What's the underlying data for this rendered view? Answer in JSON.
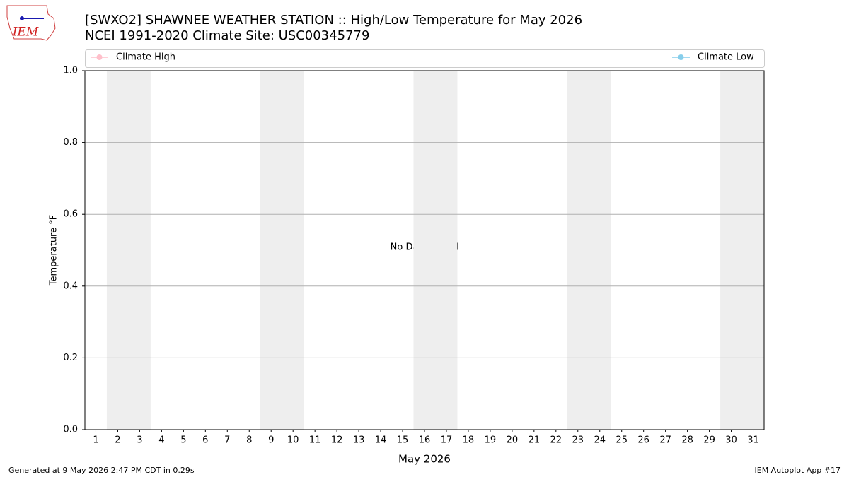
{
  "logo_text": "IEM",
  "chart_data": {
    "type": "line",
    "title": "[SWXO2] SHAWNEE WEATHER STATION :: High/Low Temperature for May 2026",
    "subtitle": "NCEI 1991-2020 Climate Site: USC00345779",
    "x_label": "May 2026",
    "y_label": "Temperature °F",
    "annotation": "No Data Found",
    "footer_left": "Generated at 9 May 2026 2:47 PM CDT in 0.29s",
    "footer_right": "IEM Autoplot App #17",
    "x": [],
    "series": [
      {
        "name": "Climate High",
        "color": "#ffc0cb",
        "values": []
      },
      {
        "name": "Climate Low",
        "color": "#87ceeb",
        "values": []
      }
    ],
    "shaded_spans": [
      [
        1.5,
        3.5
      ],
      [
        8.5,
        10.5
      ],
      [
        15.5,
        17.5
      ],
      [
        22.5,
        24.5
      ],
      [
        29.5,
        31.5
      ]
    ],
    "shade_color": "#eeeeee",
    "xlim": [
      0.5,
      31.5
    ],
    "xticks": [
      1,
      2,
      3,
      4,
      5,
      6,
      7,
      8,
      9,
      10,
      11,
      12,
      13,
      14,
      15,
      16,
      17,
      18,
      19,
      20,
      21,
      22,
      23,
      24,
      25,
      26,
      27,
      28,
      29,
      30,
      31
    ],
    "ylim": [
      0,
      1
    ],
    "yticks": [
      {
        "value": 0,
        "label": "0.0"
      },
      0.2,
      0.4,
      0.6,
      0.8,
      {
        "value": 1,
        "label": "1.0"
      }
    ],
    "grid": true
  }
}
